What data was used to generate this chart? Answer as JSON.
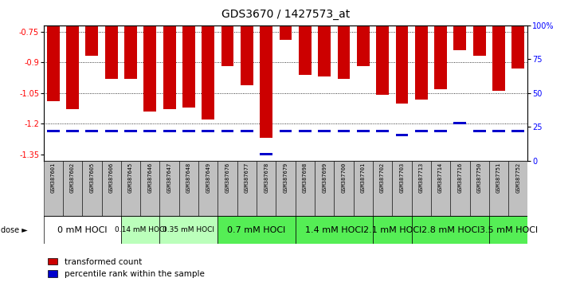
{
  "title": "GDS3670 / 1427573_at",
  "samples": [
    "GSM387601",
    "GSM387602",
    "GSM387605",
    "GSM387606",
    "GSM387645",
    "GSM387646",
    "GSM387647",
    "GSM387648",
    "GSM387649",
    "GSM387676",
    "GSM387677",
    "GSM387678",
    "GSM387679",
    "GSM387698",
    "GSM387699",
    "GSM387700",
    "GSM387701",
    "GSM387702",
    "GSM387703",
    "GSM387713",
    "GSM387714",
    "GSM387716",
    "GSM387750",
    "GSM387751",
    "GSM387752"
  ],
  "transformed_count": [
    -1.09,
    -1.13,
    -0.87,
    -0.98,
    -0.98,
    -1.14,
    -1.13,
    -1.12,
    -1.18,
    -0.92,
    -1.01,
    -1.27,
    -0.79,
    -0.96,
    -0.97,
    -0.98,
    -0.92,
    -1.06,
    -1.1,
    -1.08,
    -1.03,
    -0.84,
    -0.87,
    -1.04,
    -0.93
  ],
  "percentile_rank": [
    22,
    22,
    22,
    22,
    22,
    22,
    22,
    22,
    22,
    22,
    22,
    5,
    22,
    22,
    22,
    22,
    22,
    22,
    19,
    22,
    22,
    28,
    22,
    22,
    22
  ],
  "group_starts": [
    0,
    4,
    6,
    9,
    13,
    17,
    19,
    23
  ],
  "group_ends": [
    4,
    6,
    9,
    13,
    17,
    19,
    23,
    25
  ],
  "groups": [
    {
      "label": "0 mM HOCl",
      "color": "#ffffff",
      "font_size": 8
    },
    {
      "label": "0.14 mM HOCl",
      "color": "#bbffbb",
      "font_size": 6.5
    },
    {
      "label": "0.35 mM HOCl",
      "color": "#bbffbb",
      "font_size": 6.5
    },
    {
      "label": "0.7 mM HOCl",
      "color": "#55ee55",
      "font_size": 8
    },
    {
      "label": "1.4 mM HOCl",
      "color": "#55ee55",
      "font_size": 8
    },
    {
      "label": "2.1 mM HOCl",
      "color": "#55ee55",
      "font_size": 8
    },
    {
      "label": "2.8 mM HOCl",
      "color": "#55ee55",
      "font_size": 8
    },
    {
      "label": "3.5 mM HOCl",
      "color": "#55ee55",
      "font_size": 8
    }
  ],
  "ylim_left": [
    -1.38,
    -0.72
  ],
  "yticks_left": [
    -1.35,
    -1.2,
    -1.05,
    -0.9,
    -0.75
  ],
  "yticks_right": [
    0,
    25,
    50,
    75,
    100
  ],
  "bar_color": "#cc0000",
  "percentile_color": "#0000cc",
  "background_color": "#ffffff",
  "label_area_color": "#c0c0c0"
}
